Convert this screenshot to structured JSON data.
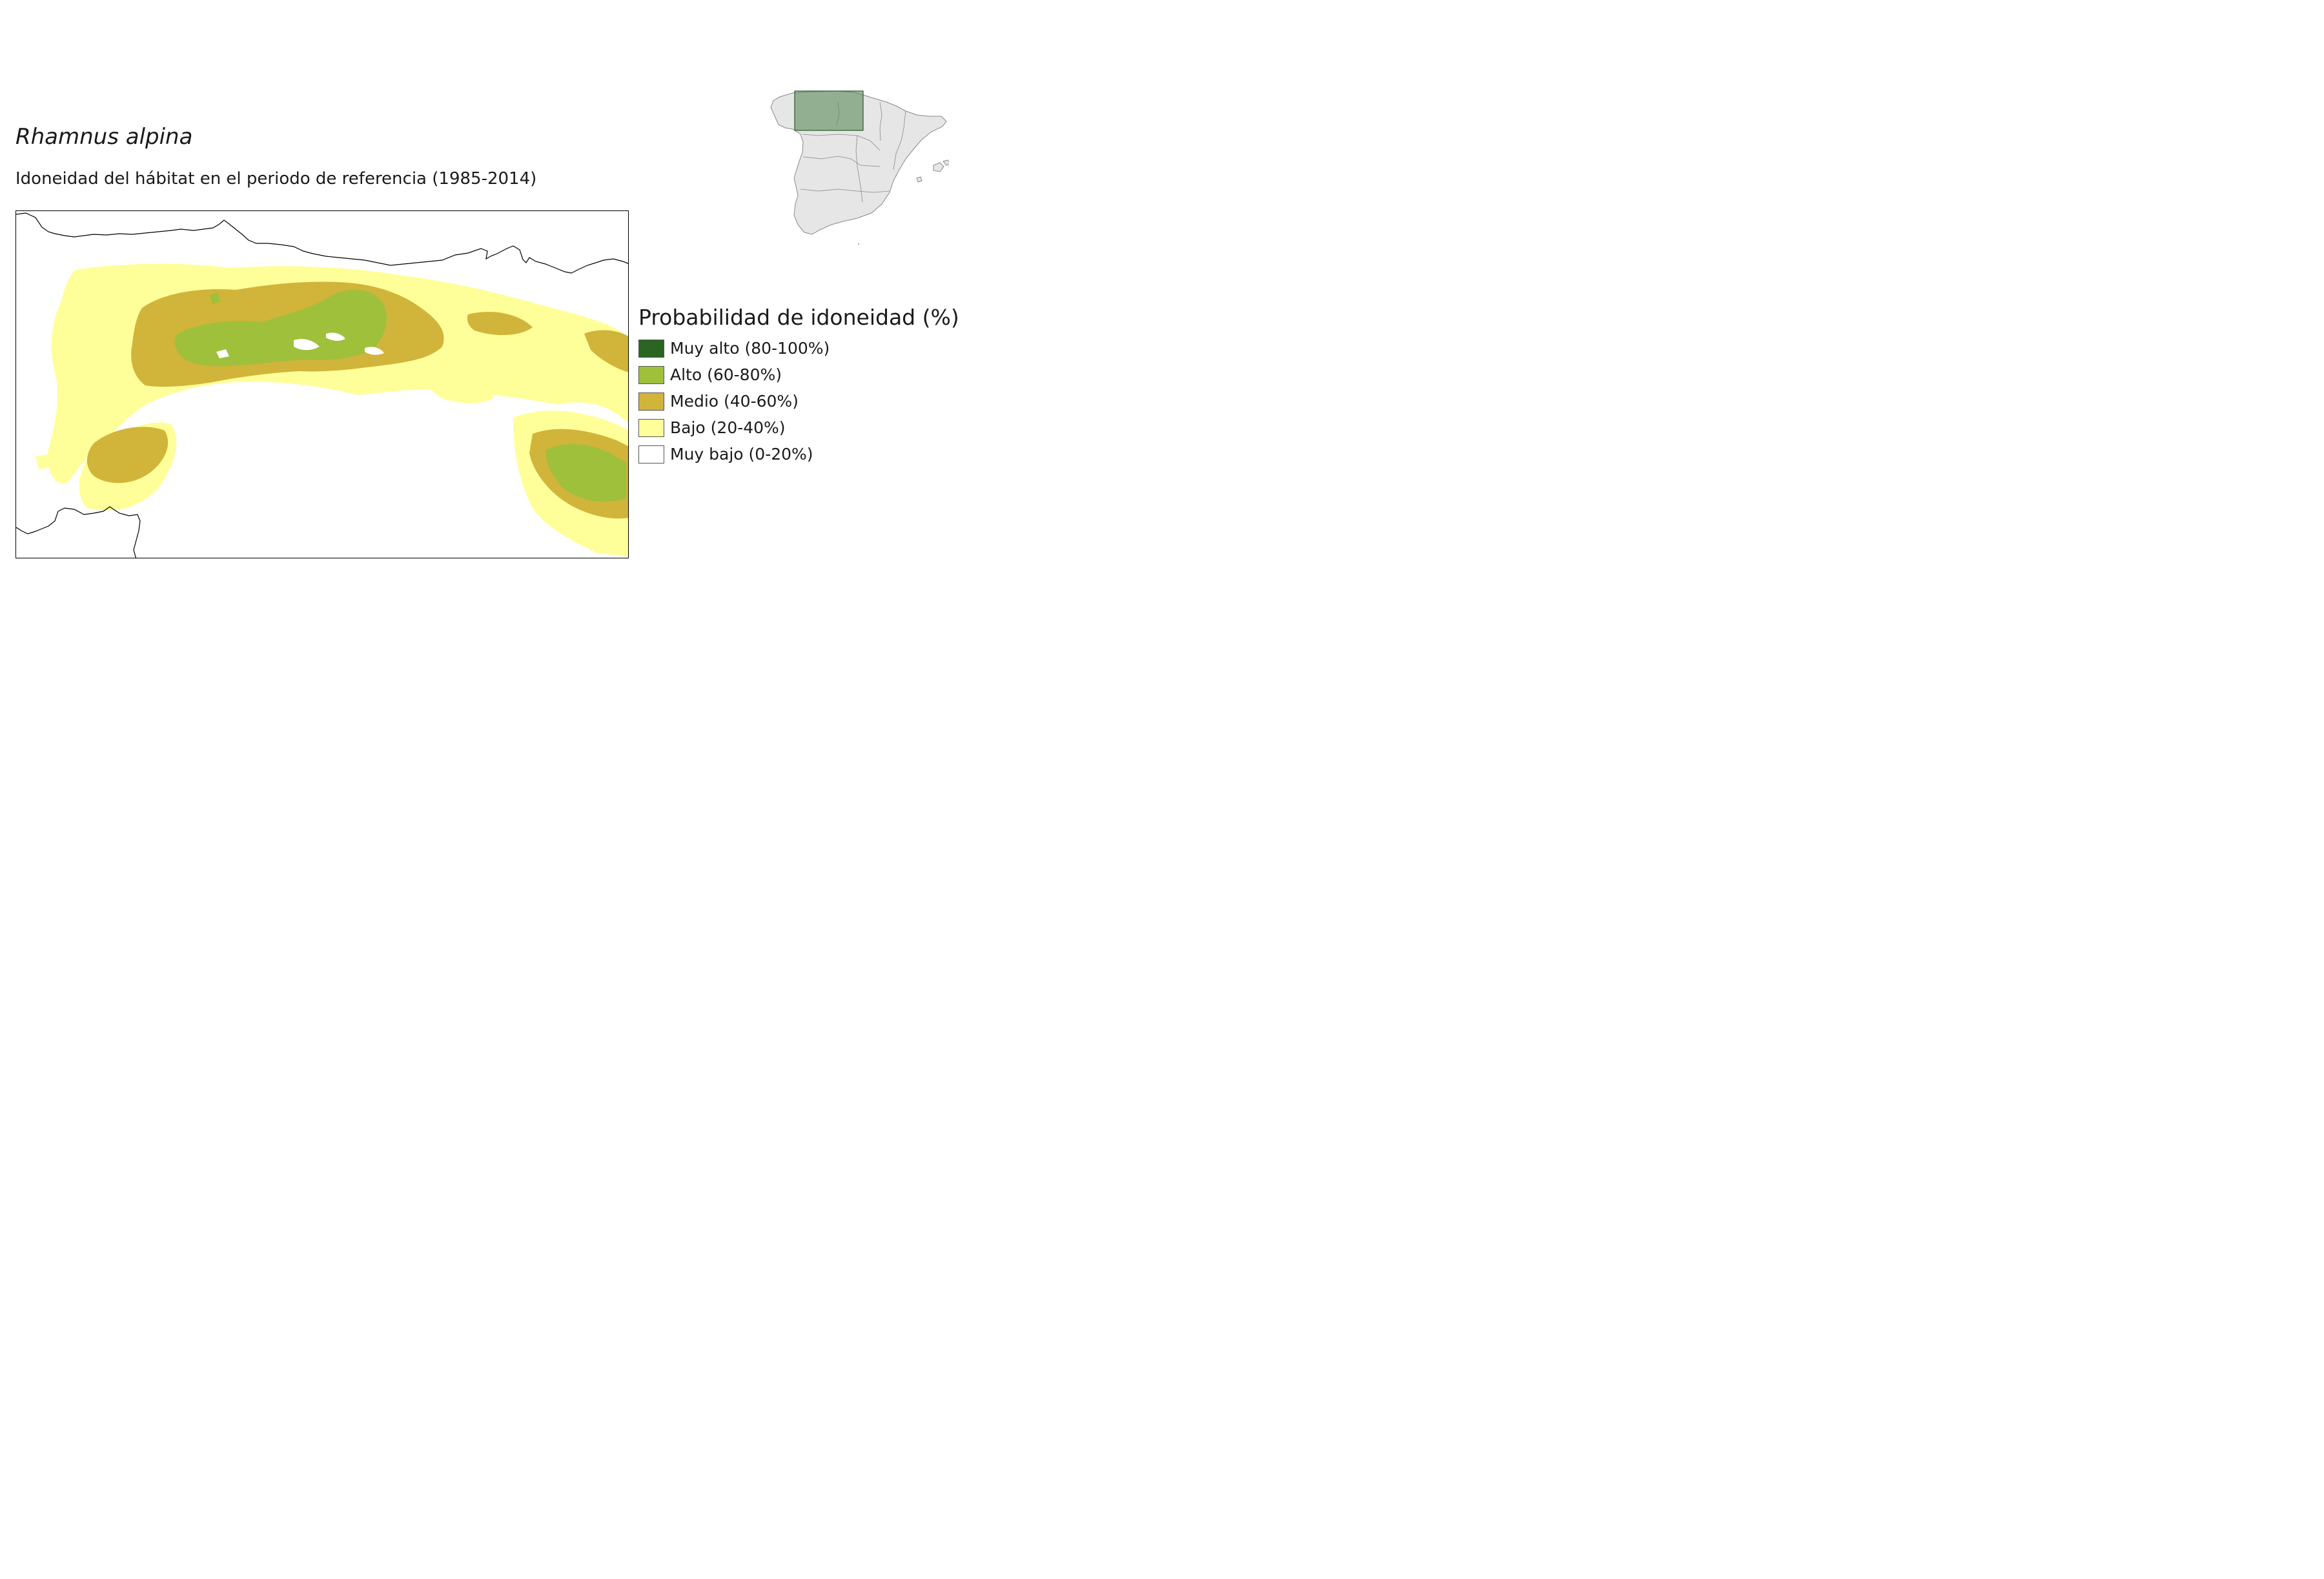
{
  "title": "Rhamnus alpina",
  "subtitle": "Idoneidad del hábitat en el periodo de referencia (1985-2014)",
  "legend": {
    "title": "Probabilidad de idoneidad (%)",
    "items": [
      {
        "label": "Muy alto (80-100%)",
        "color": "#2a6522"
      },
      {
        "label": "Alto (60-80%)",
        "color": "#9fc03b"
      },
      {
        "label": "Medio (40-60%)",
        "color": "#d1b43a"
      },
      {
        "label": "Bajo (20-40%)",
        "color": "#ffff99"
      },
      {
        "label": "Muy bajo (0-20%)",
        "color": "#ffffff"
      }
    ]
  },
  "inset": {
    "land_color": "#e6e6e6",
    "border_color": "#888888",
    "extent_color": "#5b8a5a"
  }
}
